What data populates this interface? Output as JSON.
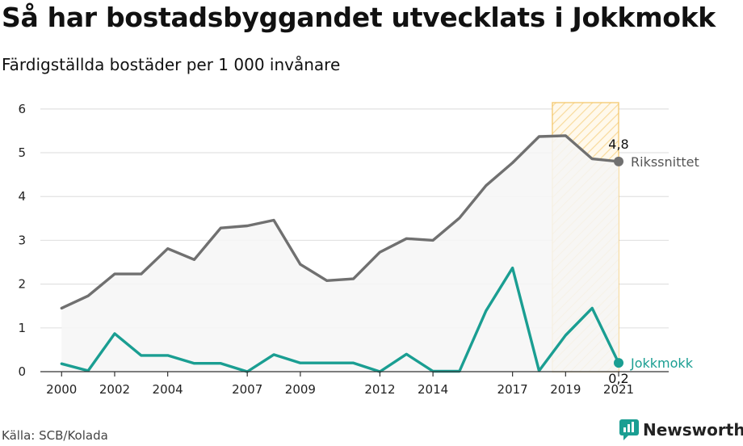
{
  "header": {
    "title": "Så har bostadsbyggandet utvecklats i Jokkmokk",
    "subtitle": "Färdigställda bostäder per 1 000 invånare"
  },
  "footer": {
    "source": "Källa: SCB/Kolada",
    "brand": "Newsworthy"
  },
  "colors": {
    "national": "#707070",
    "local": "#1a9e92",
    "highlight": "#f2c15a",
    "area": "#f6f6f6",
    "grid": "#e2e2e2"
  },
  "icons": {
    "brand": "newsworthy-logo-icon"
  },
  "chart_data": {
    "type": "line",
    "title": "Så har bostadsbyggandet utvecklats i Jokkmokk",
    "subtitle": "Färdigställda bostäder per 1 000 invånare",
    "x": [
      2000,
      2001,
      2002,
      2003,
      2004,
      2005,
      2006,
      2007,
      2008,
      2009,
      2010,
      2011,
      2012,
      2013,
      2014,
      2015,
      2016,
      2017,
      2018,
      2019,
      2020,
      2021
    ],
    "x_ticks": [
      2000,
      2002,
      2004,
      2007,
      2009,
      2012,
      2014,
      2017,
      2019,
      2021
    ],
    "y_ticks": [
      0,
      1,
      2,
      3,
      4,
      5,
      6
    ],
    "xlim": [
      1999.2,
      2022.4
    ],
    "ylim": [
      0,
      6.2
    ],
    "grid": true,
    "highlight_range": [
      2018.5,
      2021
    ],
    "series": [
      {
        "name": "Rikssnittet",
        "values": [
          1.45,
          1.73,
          2.23,
          2.23,
          2.81,
          2.56,
          3.28,
          3.33,
          3.46,
          2.45,
          2.08,
          2.12,
          2.73,
          3.04,
          3.0,
          3.51,
          4.25,
          4.77,
          5.37,
          5.39,
          4.86,
          4.8
        ],
        "end_label": "4,8",
        "shaded": true
      },
      {
        "name": "Jokkmokk",
        "values": [
          0.18,
          0.02,
          0.87,
          0.37,
          0.37,
          0.19,
          0.19,
          0.0,
          0.39,
          0.2,
          0.2,
          0.2,
          0.0,
          0.4,
          0.01,
          0.01,
          1.39,
          2.37,
          0.02,
          0.83,
          1.45,
          0.2
        ],
        "end_label": "0,2",
        "shaded": false
      }
    ]
  }
}
